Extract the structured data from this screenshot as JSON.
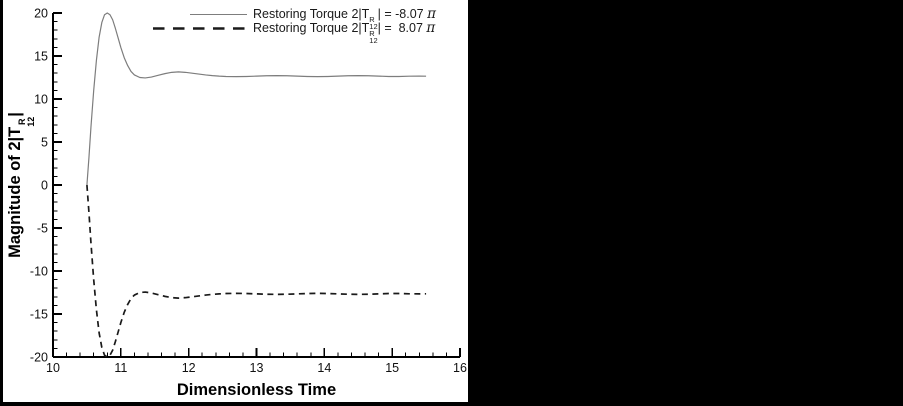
{
  "figure": {
    "background_color": "#000000",
    "panel_color": "#ffffff",
    "axis_color": "#000000",
    "tick_label_color": "#111111"
  },
  "axes": {
    "x_title": "Dimensionless Time",
    "y_title_prefix": "Magnitude of 2|T",
    "y_title_sub": "12",
    "y_title_sup": "R",
    "y_title_suffix": "|"
  },
  "legend": {
    "items": [
      {
        "prefix": "Restoring Torque 2|T",
        "sub": "12",
        "sup": "R",
        "mid": "| = -8.07 ",
        "pi": "π",
        "line_style": "solid"
      },
      {
        "prefix": "Restoring Torque 2|T",
        "sub": "12",
        "sup": "R",
        "mid": "| =  8.07 ",
        "pi": "π",
        "line_style": "dashed"
      }
    ]
  },
  "chart_data": {
    "type": "line",
    "title": "",
    "xlabel": "Dimensionless Time",
    "ylabel": "Magnitude of 2|T₁₂ᴿ|",
    "xlim": [
      10,
      16
    ],
    "ylim": [
      -20,
      20
    ],
    "x_major_tick_step": 1,
    "x_minor_tick_step": 0.2,
    "y_major_tick_step": 5,
    "y_minor_tick_step": 1,
    "x_tick_labels": [
      "10",
      "11",
      "12",
      "13",
      "14",
      "15",
      "16"
    ],
    "y_tick_labels": [
      "20",
      "15",
      "10",
      "5",
      "0",
      "-5",
      "-10",
      "-15",
      "-20"
    ],
    "grid": false,
    "legend_position": "top-center-inside",
    "x": [
      10.5,
      10.53,
      10.56,
      10.6,
      10.64,
      10.68,
      10.72,
      10.76,
      10.8,
      10.84,
      10.88,
      10.92,
      10.96,
      11.0,
      11.05,
      11.1,
      11.15,
      11.2,
      11.28,
      11.36,
      11.45,
      11.55,
      11.65,
      11.75,
      11.85,
      11.95,
      12.05,
      12.15,
      12.25,
      12.35,
      12.45,
      12.55,
      12.7,
      12.85,
      13.0,
      13.15,
      13.3,
      13.45,
      13.6,
      13.75,
      13.9,
      14.05,
      14.2,
      14.35,
      14.5,
      14.65,
      14.8,
      14.95,
      15.1,
      15.25,
      15.4,
      15.5
    ],
    "series": [
      {
        "name": "Restoring Torque 2|T₁₂ᴿ| = -8.07 π",
        "style": "solid",
        "color": "#7d7d7d",
        "width": 1.2,
        "values": [
          0,
          3.2,
          6.8,
          11.0,
          14.5,
          17.2,
          18.9,
          19.8,
          20.0,
          19.8,
          19.2,
          18.2,
          17.1,
          16.0,
          14.8,
          13.9,
          13.2,
          12.8,
          12.5,
          12.45,
          12.55,
          12.75,
          12.95,
          13.1,
          13.15,
          13.1,
          13.0,
          12.9,
          12.8,
          12.72,
          12.66,
          12.62,
          12.6,
          12.62,
          12.66,
          12.7,
          12.72,
          12.7,
          12.66,
          12.62,
          12.6,
          12.62,
          12.66,
          12.7,
          12.72,
          12.7,
          12.66,
          12.62,
          12.62,
          12.65,
          12.66,
          12.65
        ]
      },
      {
        "name": "Restoring Torque 2|T₁₂ᴿ| = 8.07 π",
        "style": "dashed",
        "color": "#1a1a1a",
        "width": 1.7,
        "values": [
          0,
          -3.2,
          -6.8,
          -11.0,
          -14.5,
          -17.2,
          -18.9,
          -19.8,
          -20.0,
          -19.8,
          -19.2,
          -18.2,
          -17.1,
          -16.0,
          -14.8,
          -13.9,
          -13.2,
          -12.8,
          -12.5,
          -12.45,
          -12.55,
          -12.75,
          -12.95,
          -13.1,
          -13.15,
          -13.1,
          -13.0,
          -12.9,
          -12.8,
          -12.72,
          -12.66,
          -12.62,
          -12.6,
          -12.62,
          -12.66,
          -12.7,
          -12.72,
          -12.7,
          -12.66,
          -12.62,
          -12.6,
          -12.62,
          -12.66,
          -12.7,
          -12.72,
          -12.7,
          -12.66,
          -12.62,
          -12.62,
          -12.65,
          -12.66,
          -12.65
        ]
      }
    ]
  }
}
